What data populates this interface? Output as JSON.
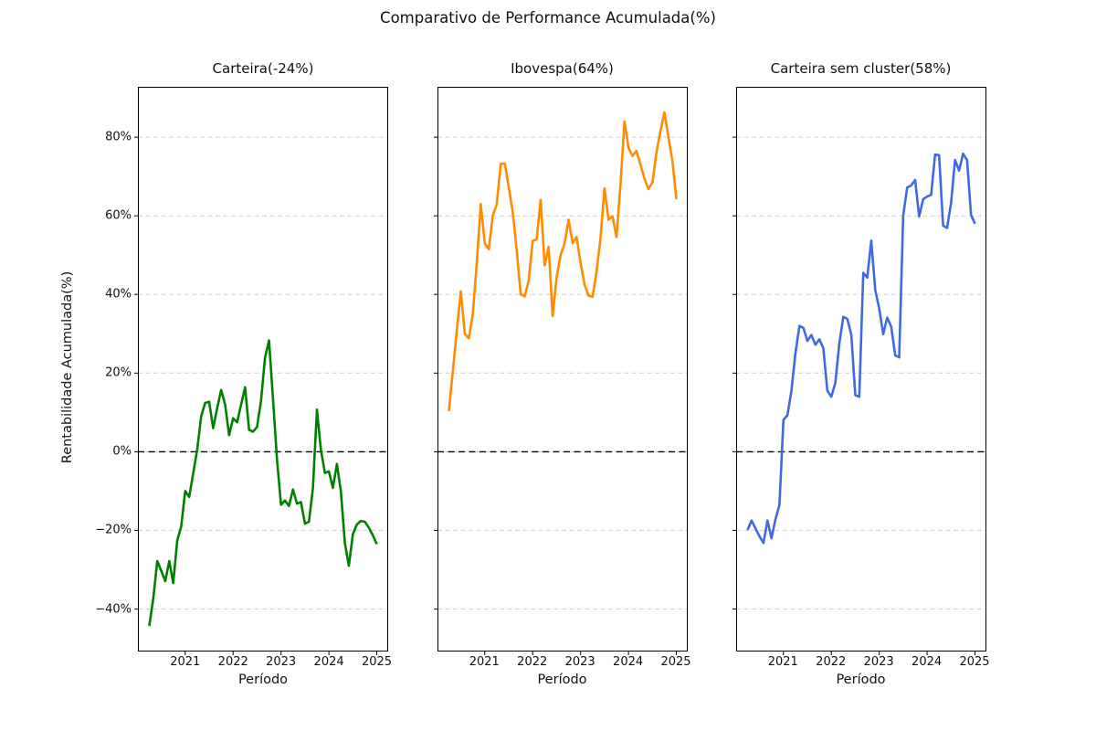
{
  "chart_data": {
    "type": "line",
    "suptitle": "Comparativo de Performance Acumulada(%)",
    "xlabel": "Período",
    "ylabel": "Rentabilidade Acumulada(%)",
    "x_period": {
      "start": "2020-04",
      "end": "2025-01",
      "freq": "monthly",
      "n_points": 58
    },
    "x_ticks": [
      {
        "label": "2021",
        "month_index": 9
      },
      {
        "label": "2022",
        "month_index": 21
      },
      {
        "label": "2023",
        "month_index": 33
      },
      {
        "label": "2024",
        "month_index": 45
      },
      {
        "label": "2025",
        "month_index": 57
      }
    ],
    "y_ticks": [
      {
        "value": -40,
        "label": "−40%"
      },
      {
        "value": -20,
        "label": "−20%"
      },
      {
        "value": 0,
        "label": "0%"
      },
      {
        "value": 20,
        "label": "20%"
      },
      {
        "value": 40,
        "label": "40%"
      },
      {
        "value": 60,
        "label": "60%"
      },
      {
        "value": 80,
        "label": "80%"
      }
    ],
    "ylim": [
      -50.8,
      92.8
    ],
    "grid": {
      "axis": "y",
      "style": "dashed",
      "color": "#cfcfcf"
    },
    "zero_line": {
      "value": 0,
      "style": "dashed",
      "color": "#000000"
    },
    "legend": "none",
    "subplots": [
      {
        "title": "Carteira(-24%)",
        "series_name": "Carteira",
        "final_value_pct": -24,
        "color": "#008000",
        "values_pct": [
          -44.3,
          -37.3,
          -27.8,
          -30.3,
          -32.9,
          -27.8,
          -33.4,
          -22.6,
          -19.0,
          -10.0,
          -11.5,
          -5.5,
          0.5,
          9.0,
          12.4,
          12.7,
          6.0,
          11.0,
          15.7,
          12.0,
          4.2,
          8.5,
          7.5,
          12.0,
          16.4,
          5.6,
          5.1,
          6.3,
          13.0,
          24.0,
          28.3,
          13.3,
          -2.0,
          -13.5,
          -12.4,
          -13.8,
          -9.6,
          -13.2,
          -12.8,
          -18.3,
          -17.8,
          -9.2,
          10.7,
          0.5,
          -5.4,
          -5.0,
          -9.2,
          -3.1,
          -10.0,
          -23.2,
          -29.0,
          -21.0,
          -18.5,
          -17.6,
          -17.8,
          -19.3,
          -21.2,
          -23.5
        ]
      },
      {
        "title": "Ibovespa(64%)",
        "series_name": "Ibovespa",
        "final_value_pct": 64,
        "color": "#FF8C00",
        "values_pct": [
          10.3,
          20.5,
          31.0,
          40.8,
          30.0,
          28.8,
          35.0,
          48.0,
          63.0,
          53.0,
          51.5,
          60.0,
          63.0,
          73.2,
          73.3,
          67.3,
          61.0,
          51.3,
          40.0,
          39.5,
          43.5,
          53.6,
          54.0,
          64.1,
          47.4,
          52.1,
          34.5,
          44.3,
          50.0,
          53.0,
          59.0,
          53.0,
          54.6,
          48.0,
          42.5,
          39.7,
          39.4,
          45.8,
          54.4,
          67.0,
          59.0,
          59.9,
          54.6,
          68.0,
          84.0,
          77.3,
          75.2,
          76.5,
          73.0,
          69.5,
          66.8,
          68.5,
          76.0,
          81.5,
          86.3,
          80.0,
          74.0,
          64.2
        ]
      },
      {
        "title": "Carteira sem cluster(58%)",
        "series_name": "Carteira sem cluster",
        "final_value_pct": 58,
        "color": "#4169E1",
        "values_pct": [
          -19.9,
          -17.5,
          -19.5,
          -21.5,
          -23.2,
          -17.5,
          -22.0,
          -17.2,
          -13.5,
          8.1,
          9.3,
          15.5,
          25.0,
          32.0,
          31.5,
          28.2,
          29.7,
          27.2,
          28.6,
          26.3,
          15.5,
          14.0,
          17.5,
          27.5,
          34.3,
          33.8,
          29.8,
          14.4,
          14.0,
          45.5,
          44.3,
          53.7,
          41.1,
          36.4,
          29.9,
          34.1,
          31.8,
          24.5,
          24.0,
          60.0,
          67.2,
          67.7,
          69.1,
          59.8,
          64.2,
          64.9,
          65.3,
          75.6,
          75.4,
          57.5,
          56.9,
          63.3,
          74.2,
          71.5,
          75.8,
          74.2,
          60.2,
          58.0
        ]
      }
    ]
  }
}
